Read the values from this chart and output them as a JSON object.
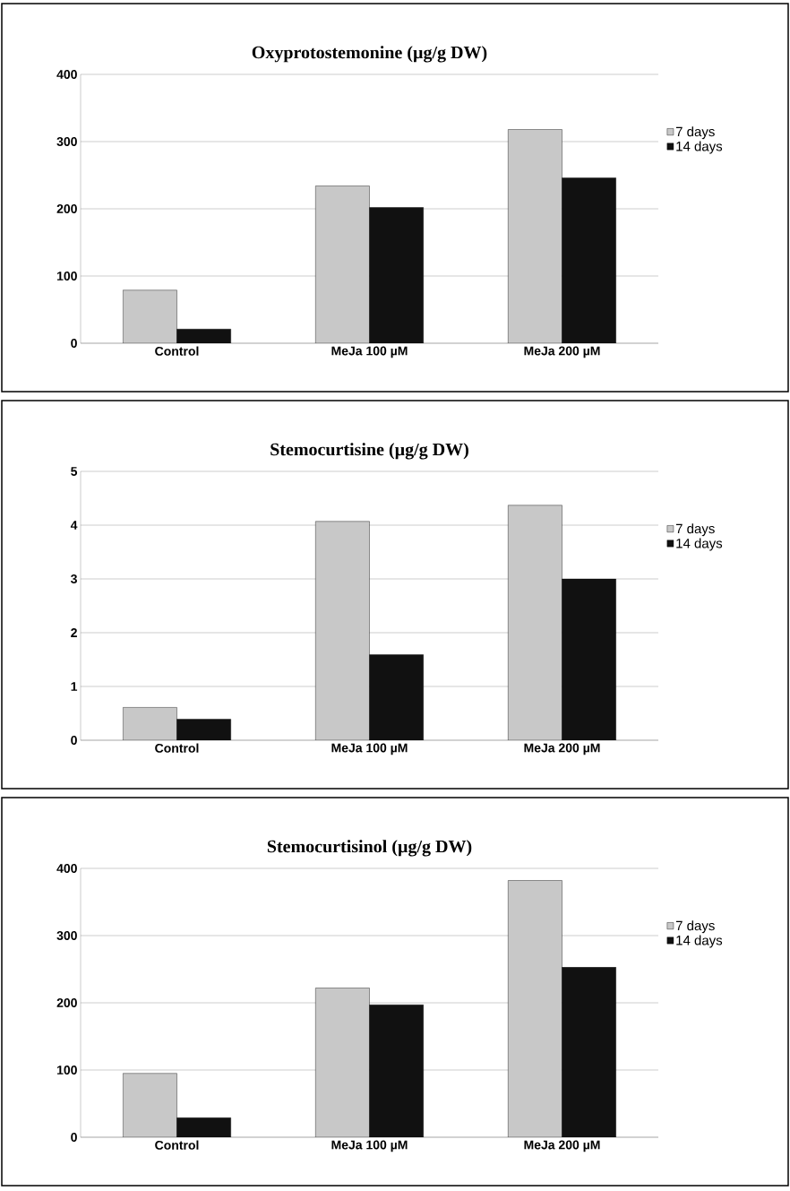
{
  "chart_data": [
    {
      "type": "bar",
      "title": "Oxyprotostemonine (µg/g DW)",
      "categories": [
        "Control",
        "MeJa 100 µM",
        "MeJa 200  µM"
      ],
      "series": [
        {
          "name": "7 days",
          "color": "#c8c8c8",
          "values": [
            79,
            234,
            318
          ]
        },
        {
          "name": "14 days",
          "color": "#111111",
          "values": [
            21,
            202,
            246
          ]
        }
      ],
      "ylim": [
        0,
        400
      ],
      "yticks": [
        0,
        100,
        200,
        300,
        400
      ],
      "grid": "y",
      "legend": "right"
    },
    {
      "type": "bar",
      "title": "Stemocurtisine (µg/g DW)",
      "categories": [
        "Control",
        "MeJa 100 µM",
        "MeJa 200  µM"
      ],
      "series": [
        {
          "name": "7 days",
          "color": "#c8c8c8",
          "values": [
            0.61,
            4.07,
            4.37
          ]
        },
        {
          "name": "14 days",
          "color": "#111111",
          "values": [
            0.39,
            1.59,
            3.0
          ]
        }
      ],
      "ylim": [
        0,
        5
      ],
      "yticks": [
        0,
        1,
        2,
        3,
        4,
        5
      ],
      "grid": "y",
      "legend": "right"
    },
    {
      "type": "bar",
      "title": "Stemocurtisinol (µg/g DW)",
      "categories": [
        "Control",
        "MeJa 100 µM",
        "MeJa 200  µM"
      ],
      "series": [
        {
          "name": "7 days",
          "color": "#c8c8c8",
          "values": [
            95,
            222,
            382
          ]
        },
        {
          "name": "14 days",
          "color": "#111111",
          "values": [
            29,
            197,
            253
          ]
        }
      ],
      "ylim": [
        0,
        400
      ],
      "yticks": [
        0,
        100,
        200,
        300,
        400
      ],
      "grid": "y",
      "legend": "right"
    }
  ]
}
